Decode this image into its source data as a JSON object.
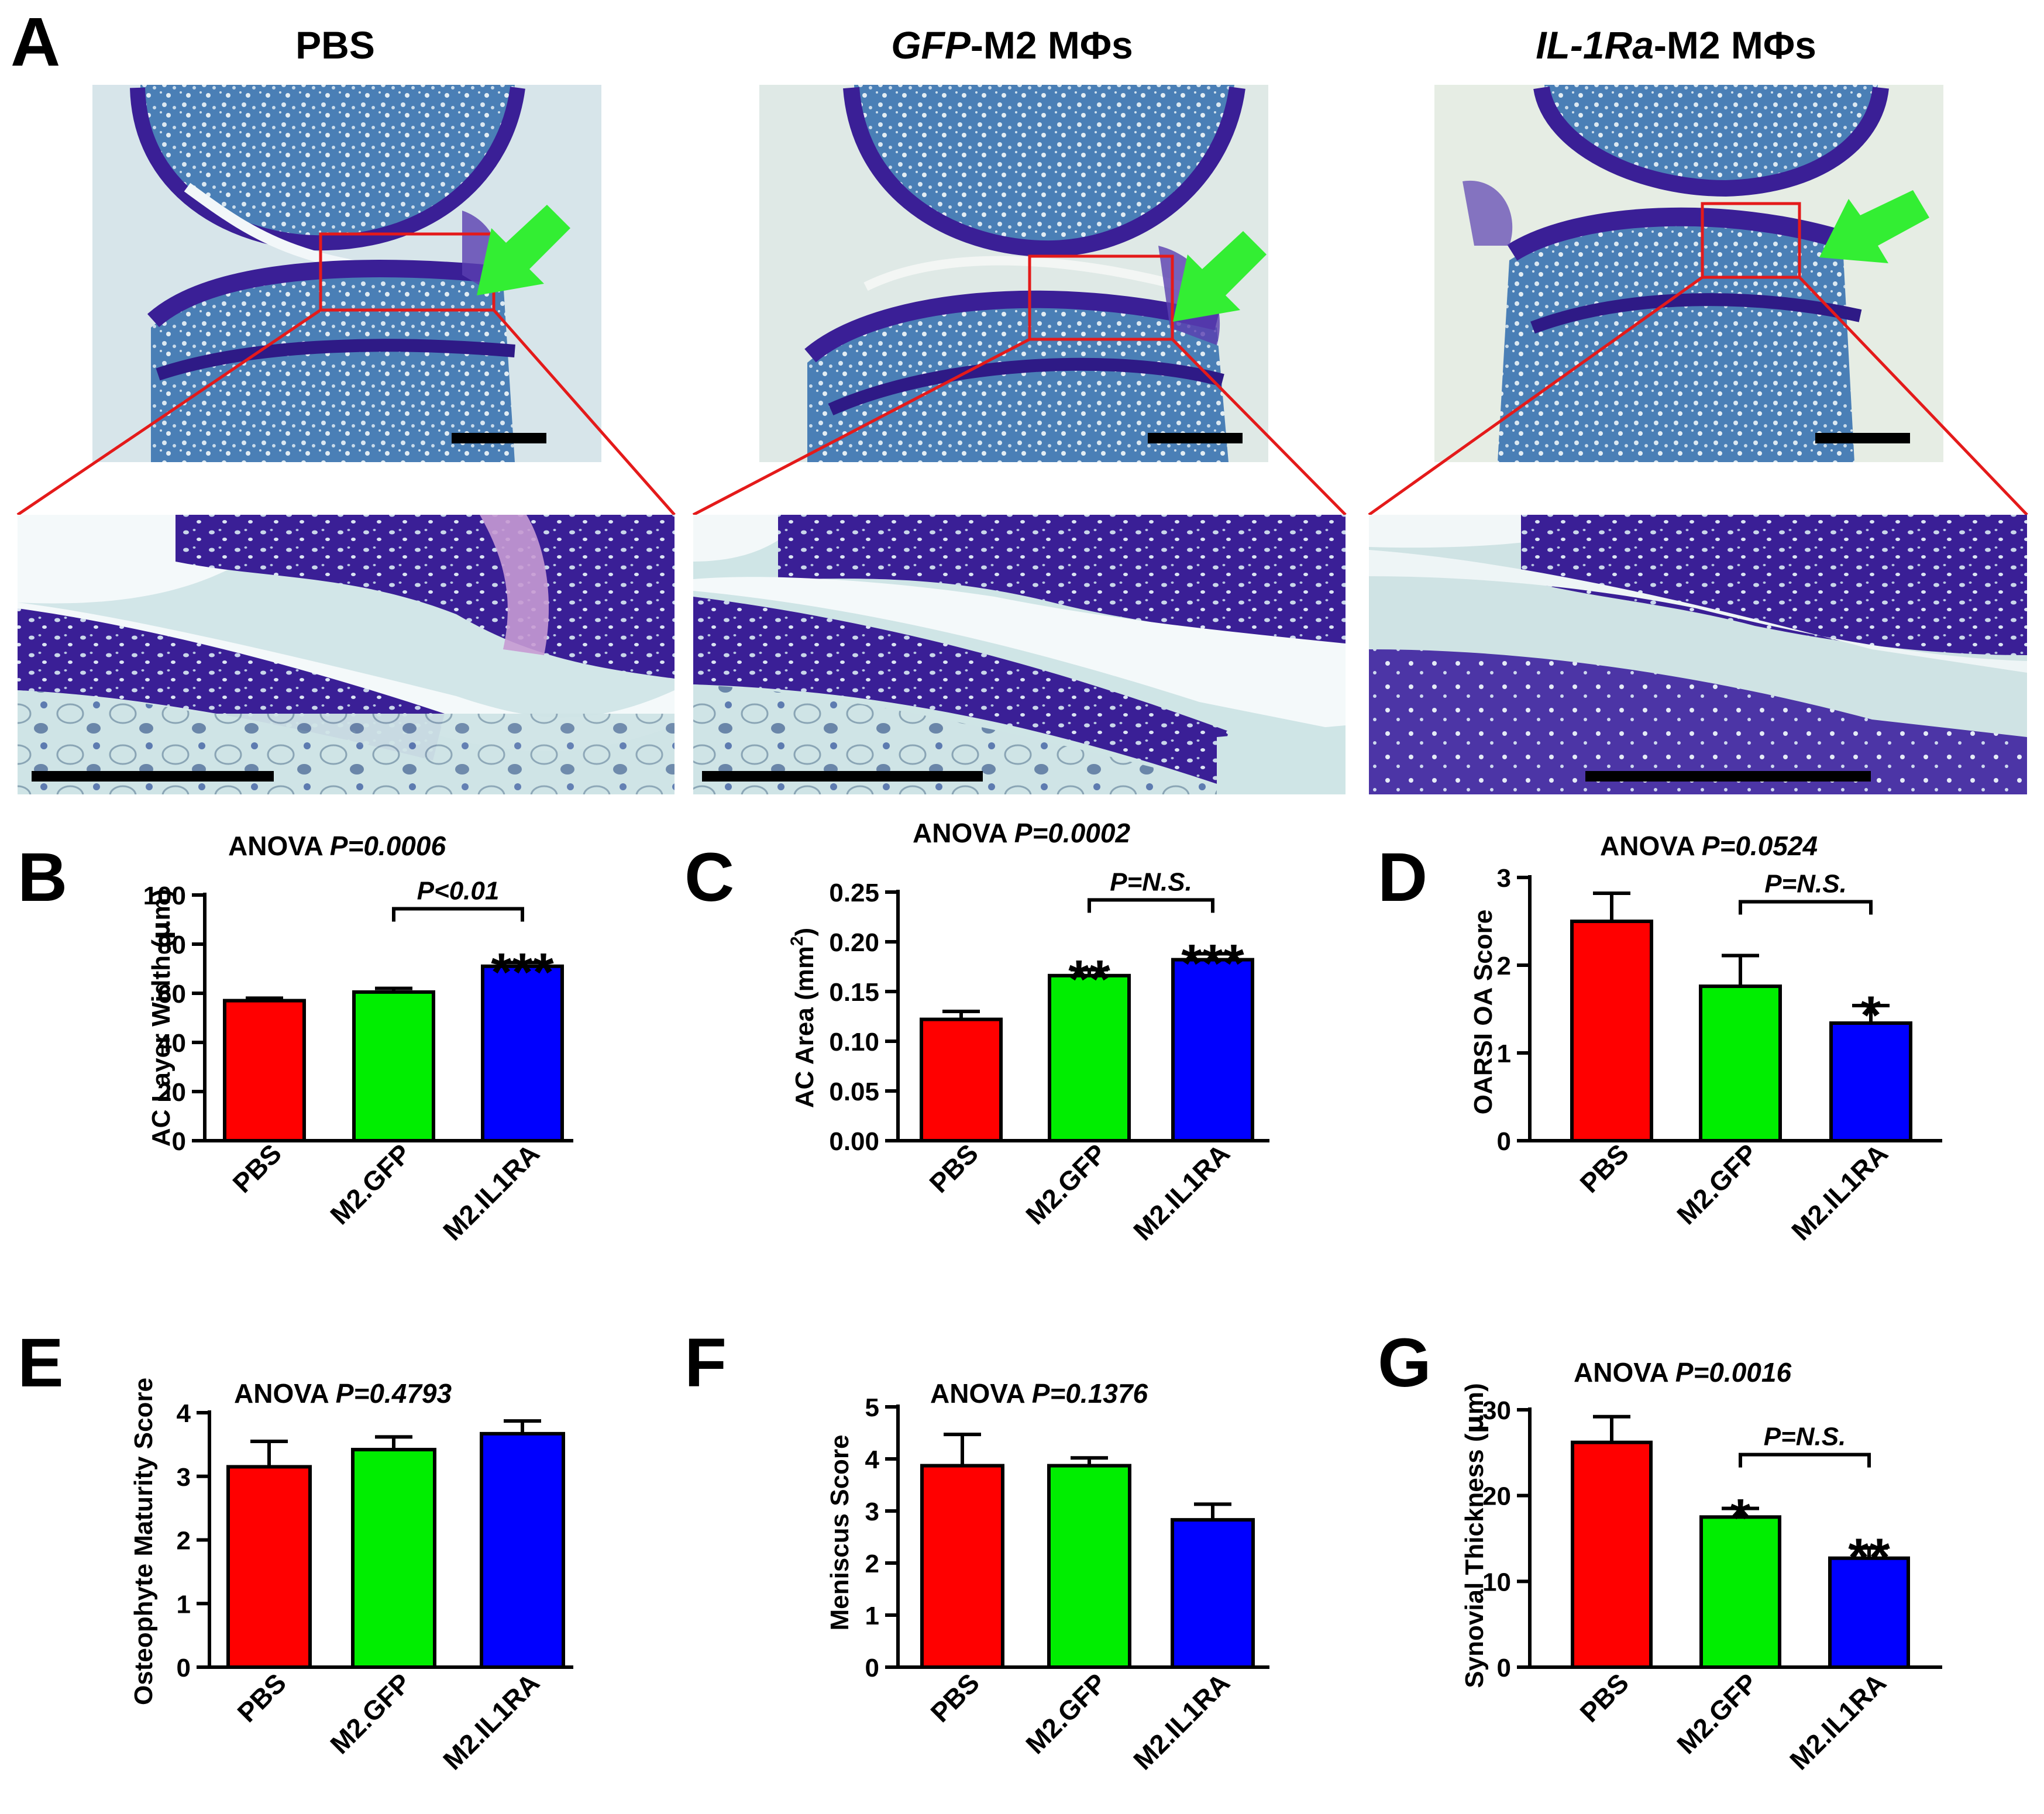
{
  "colors": {
    "pbs": "#ff0000",
    "gfp": "#00ee00",
    "il1ra": "#0000ff",
    "zoom_lines": "#e41a1a",
    "arrow": "#33ee33",
    "tissue_bg": "#d9e6ea",
    "bone_blue": "#3c6fa6",
    "cartilage_purple": "#3a1f96"
  },
  "panel_a": {
    "letter": "A",
    "columns": [
      {
        "title_italic": "",
        "title_rest": "PBS"
      },
      {
        "title_italic": "GFP",
        "title_rest": "-M2 MΦs"
      },
      {
        "title_italic": "IL-1Ra",
        "title_rest": "-M2 MΦs"
      }
    ]
  },
  "chart_data": [
    {
      "panel": "B",
      "type": "bar",
      "anova_label": "ANOVA",
      "anova_p": "P=0.0006",
      "categories": [
        "PBS",
        "M2.GFP",
        "M2.IL1RA"
      ],
      "values": [
        57,
        60.5,
        71
      ],
      "errors": [
        1,
        1.5,
        1.5
      ],
      "ylabel_pre": "AC Layer Width (",
      "ylabel_unit": "μ",
      "ylabel_post": "m)",
      "ylim": [
        0,
        100
      ],
      "yticks": [
        "0",
        "20",
        "40",
        "60",
        "80",
        "100"
      ],
      "stars": [
        "",
        "",
        "***"
      ],
      "comparison": {
        "from": 1,
        "to": 2,
        "label": "P<0.01"
      }
    },
    {
      "panel": "C",
      "type": "bar",
      "anova_label": "ANOVA",
      "anova_p": "P=0.0002",
      "categories": [
        "PBS",
        "M2.GFP",
        "M2.IL1RA"
      ],
      "values": [
        0.122,
        0.166,
        0.182
      ],
      "errors": [
        0.008,
        0.006,
        0.006
      ],
      "ylabel_pre": "AC Area (mm",
      "ylabel_sup": "2",
      "ylabel_post": ")",
      "ylim": [
        0,
        0.25
      ],
      "yticks": [
        "0.00",
        "0.05",
        "0.10",
        "0.15",
        "0.20",
        "0.25"
      ],
      "stars": [
        "",
        "**",
        "***"
      ],
      "comparison": {
        "from": 1,
        "to": 2,
        "label": "P=N.S."
      }
    },
    {
      "panel": "D",
      "type": "bar",
      "anova_label": "ANOVA",
      "anova_p": "P=0.0524",
      "categories": [
        "PBS",
        "M2.GFP",
        "M2.IL1RA"
      ],
      "values": [
        2.5,
        1.76,
        1.34
      ],
      "errors": [
        0.32,
        0.35,
        0.2
      ],
      "ylabel": "OARSI OA Score",
      "ylim": [
        0,
        3
      ],
      "yticks": [
        "0",
        "1",
        "2",
        "3"
      ],
      "stars": [
        "",
        "",
        "*"
      ],
      "comparison": {
        "from": 1,
        "to": 2,
        "label": "P=N.S."
      }
    },
    {
      "panel": "E",
      "type": "bar",
      "anova_label": "ANOVA",
      "anova_p": "P=0.4793",
      "categories": [
        "PBS",
        "M2.GFP",
        "M2.IL1RA"
      ],
      "values": [
        3.15,
        3.42,
        3.67
      ],
      "errors": [
        0.4,
        0.2,
        0.2
      ],
      "ylabel": "Osteophyte Maturity Score",
      "ylim": [
        0,
        4
      ],
      "yticks": [
        "0",
        "1",
        "2",
        "3",
        "4"
      ],
      "stars": [
        "",
        "",
        ""
      ]
    },
    {
      "panel": "F",
      "type": "bar",
      "anova_label": "ANOVA",
      "anova_p": "P=0.1376",
      "categories": [
        "PBS",
        "M2.GFP",
        "M2.IL1RA"
      ],
      "values": [
        3.87,
        3.87,
        2.83
      ],
      "errors": [
        0.6,
        0.15,
        0.3
      ],
      "ylabel": "Meniscus Score",
      "ylim": [
        0,
        5
      ],
      "yticks": [
        "0",
        "1",
        "2",
        "3",
        "4",
        "5"
      ],
      "stars": [
        "",
        "",
        ""
      ]
    },
    {
      "panel": "G",
      "type": "bar",
      "anova_label": "ANOVA",
      "anova_p": "P=0.0016",
      "categories": [
        "PBS",
        "M2.GFP",
        "M2.IL1RA"
      ],
      "values": [
        26.2,
        17.5,
        12.7
      ],
      "errors": [
        3,
        1,
        1.2
      ],
      "ylabel_pre": "Synovial Thickness (",
      "ylabel_unit": "μ",
      "ylabel_post": "m)",
      "ylim": [
        0,
        30
      ],
      "yticks": [
        "0",
        "10",
        "20",
        "30"
      ],
      "stars": [
        "",
        "*",
        "**"
      ],
      "comparison": {
        "from": 1,
        "to": 2,
        "label": "P=N.S."
      }
    }
  ]
}
